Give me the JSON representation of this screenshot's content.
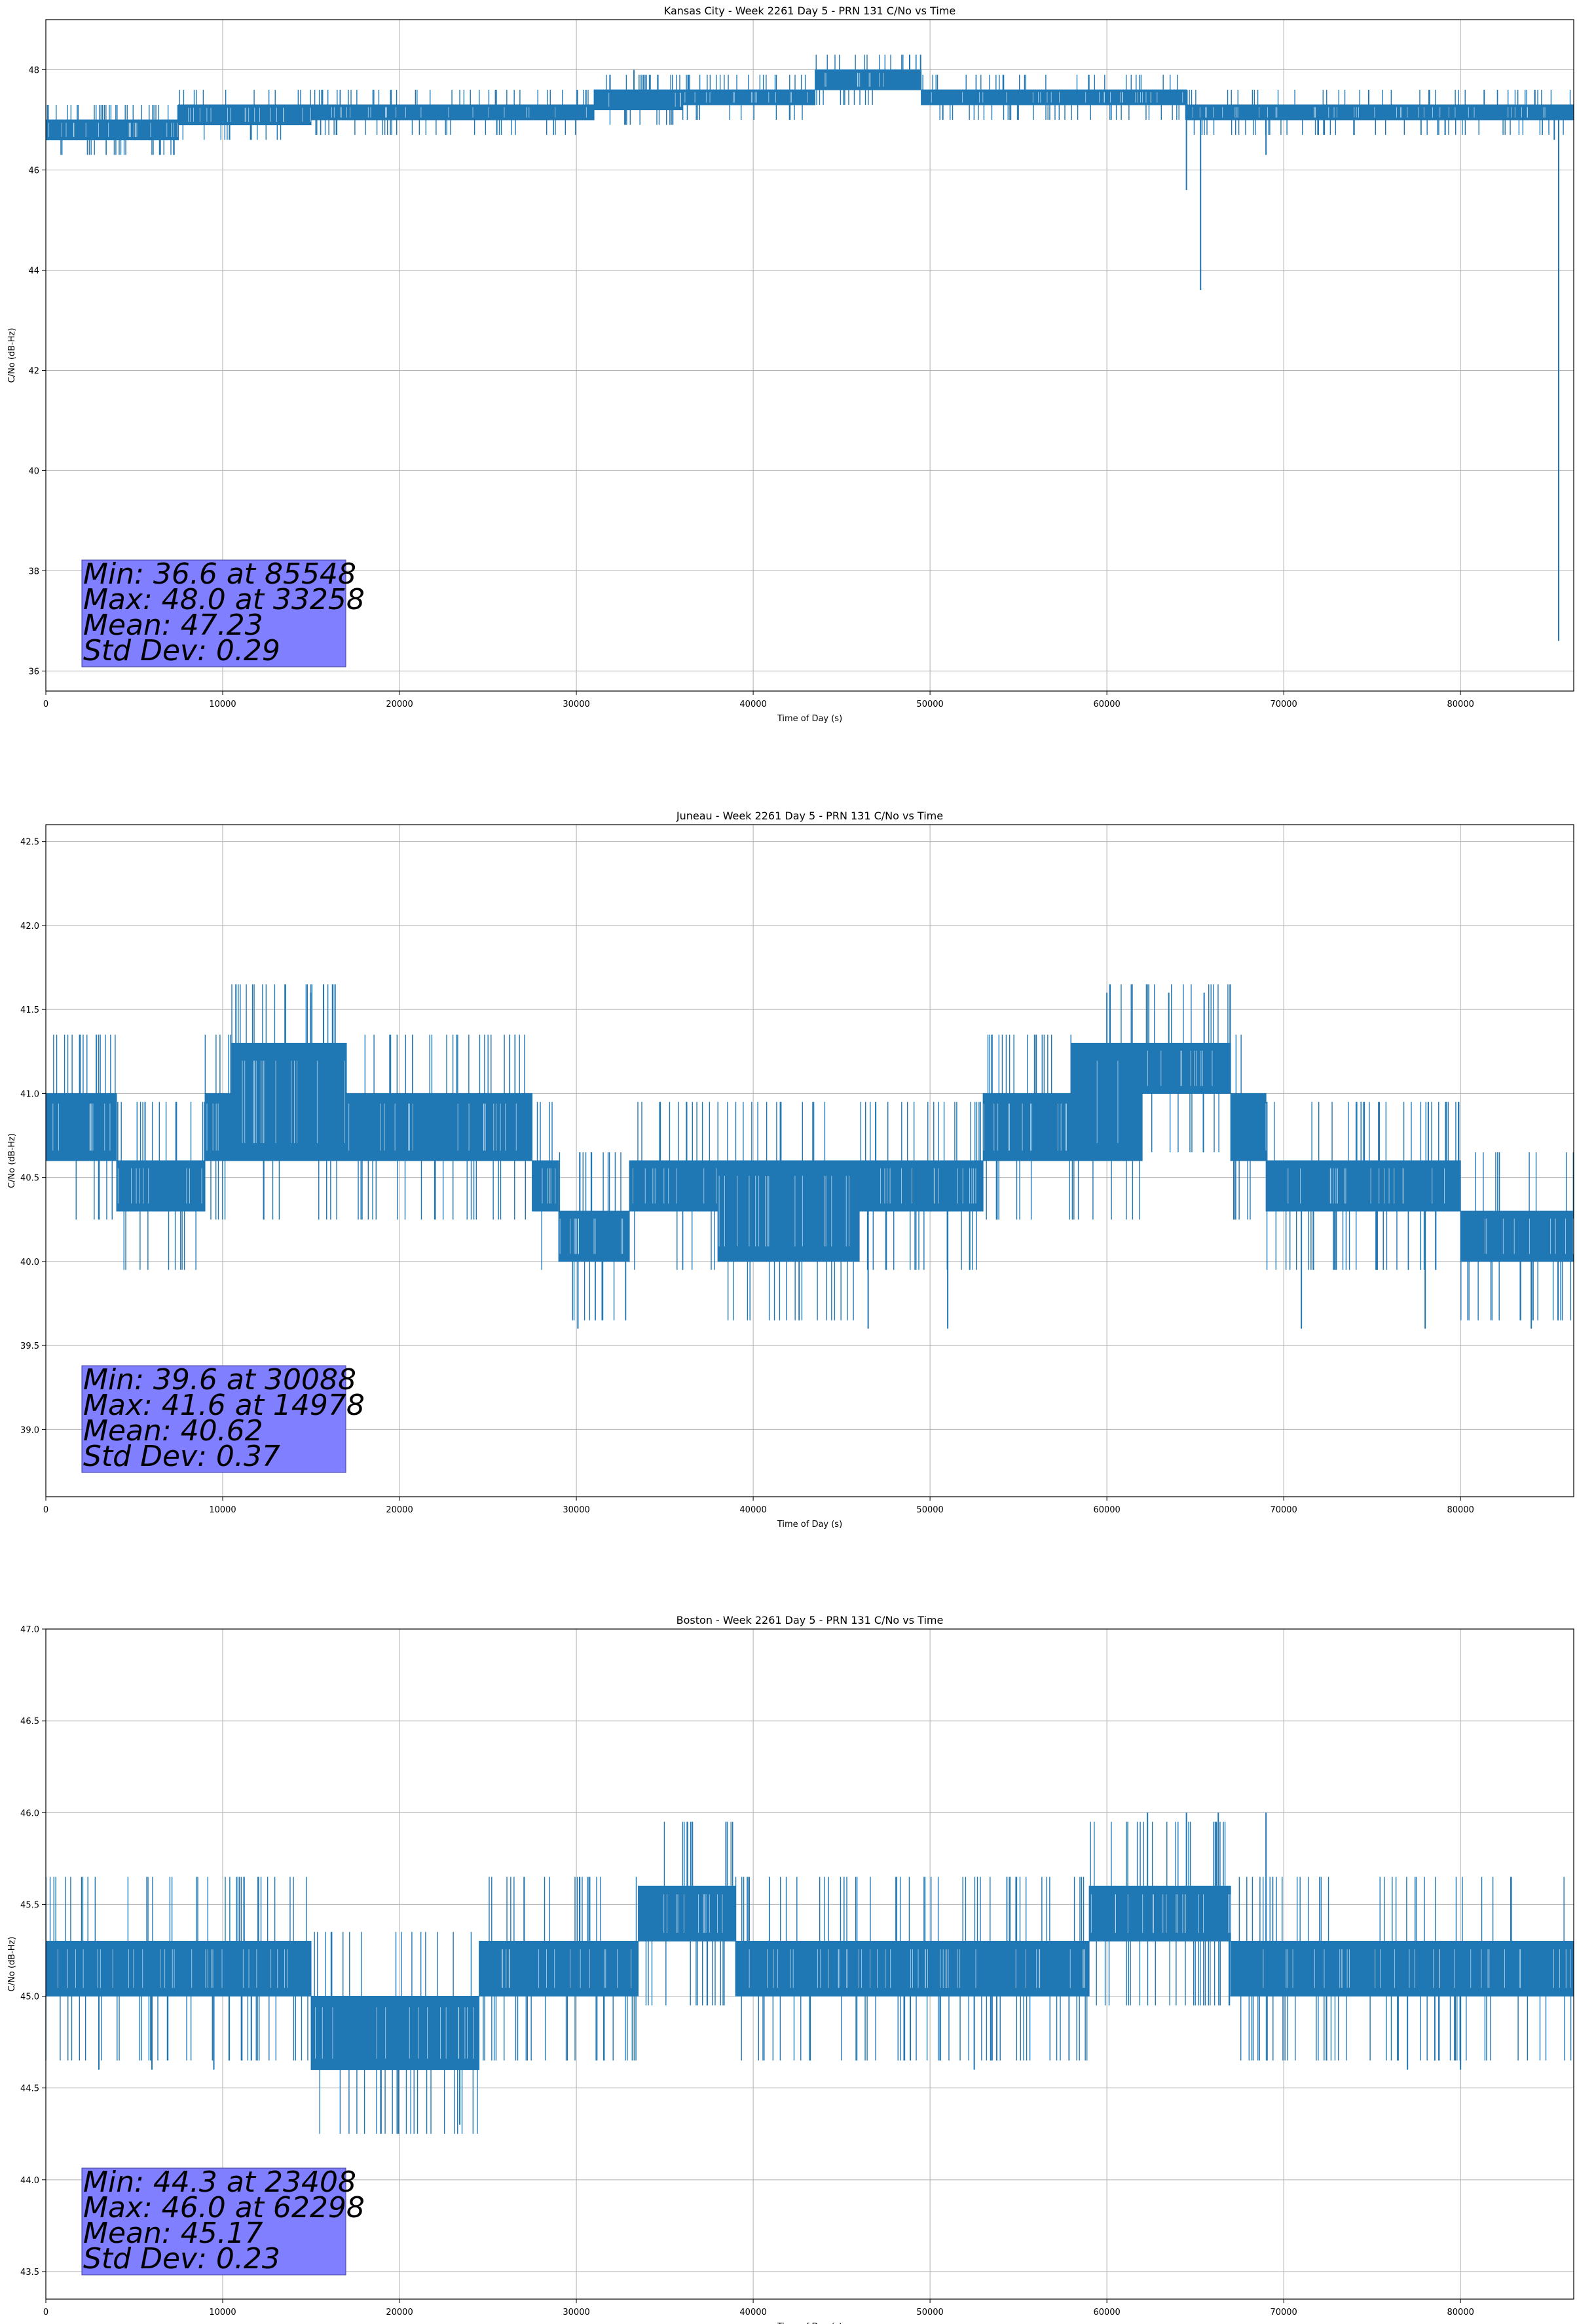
{
  "chart_data": [
    {
      "type": "line",
      "title": "Kansas City - Week 2261 Day 5 - PRN 131 C/No vs Time",
      "xlabel": "Time of Day (s)",
      "ylabel": "C/No (dB-Hz)",
      "xlim": [
        0,
        86400
      ],
      "ylim": [
        35.6,
        49.0
      ],
      "xticks": [
        0,
        10000,
        20000,
        30000,
        40000,
        50000,
        60000,
        70000,
        80000
      ],
      "yticks": [
        36,
        38,
        40,
        42,
        44,
        46,
        48
      ],
      "ytick_labels": [
        "36",
        "38",
        "40",
        "42",
        "44",
        "46",
        "48"
      ],
      "grid": true,
      "color": "#1f77b4",
      "stats": [
        "Min: 36.6 at 85548",
        "Max: 48.0 at 33258",
        "Mean: 47.23",
        "Std Dev: 0.29"
      ],
      "series": [
        {
          "x": [
            0,
            7500,
            7500,
            15000,
            15000,
            23000,
            23000,
            28000,
            28000,
            31000,
            31000,
            36000,
            36000,
            40000,
            40000,
            43500,
            43500,
            49500,
            49500,
            52000,
            52000,
            55000,
            55000,
            58000,
            58000,
            64500,
            64500,
            67000,
            67000,
            70000,
            70000,
            86400
          ],
          "ylow": [
            46.6,
            46.6,
            46.9,
            46.9,
            47.0,
            47.0,
            47.0,
            47.0,
            47.0,
            47.0,
            47.2,
            47.2,
            47.3,
            47.3,
            47.3,
            47.3,
            47.6,
            47.6,
            47.3,
            47.3,
            47.3,
            47.3,
            47.3,
            47.3,
            47.3,
            47.3,
            47.0,
            47.0,
            47.0,
            47.0,
            47.0,
            47.0
          ],
          "yhigh": [
            47.0,
            47.0,
            47.3,
            47.3,
            47.3,
            47.3,
            47.3,
            47.3,
            47.3,
            47.3,
            47.6,
            47.6,
            47.6,
            47.6,
            47.6,
            47.6,
            48.0,
            48.0,
            47.6,
            47.6,
            47.6,
            47.6,
            47.6,
            47.6,
            47.6,
            47.6,
            47.3,
            47.3,
            47.3,
            47.3,
            47.3,
            47.3
          ]
        }
      ],
      "spikes": [
        [
          64500,
          45.6
        ],
        [
          65300,
          43.6
        ],
        [
          69000,
          46.3
        ],
        [
          85548,
          36.6
        ],
        [
          33258,
          48.0
        ],
        [
          85300,
          46.6
        ]
      ]
    },
    {
      "type": "line",
      "title": "Juneau - Week 2261 Day 5 - PRN 131 C/No vs Time",
      "xlabel": "Time of Day (s)",
      "ylabel": "C/No (dB-Hz)",
      "xlim": [
        0,
        86400
      ],
      "ylim": [
        38.6,
        42.6
      ],
      "xticks": [
        0,
        10000,
        20000,
        30000,
        40000,
        50000,
        60000,
        70000,
        80000
      ],
      "yticks": [
        39.0,
        39.5,
        40.0,
        40.5,
        41.0,
        41.5,
        42.0,
        42.5
      ],
      "ytick_labels": [
        "39.0",
        "39.5",
        "40.0",
        "40.5",
        "41.0",
        "41.5",
        "42.0",
        "42.5"
      ],
      "grid": true,
      "color": "#1f77b4",
      "stats": [
        "Min: 39.6 at 30088",
        "Max: 41.6 at 14978",
        "Mean: 40.62",
        "Std Dev: 0.37"
      ],
      "series": [
        {
          "x": [
            0,
            4000,
            4000,
            9000,
            9000,
            10500,
            10500,
            17000,
            17000,
            27500,
            27500,
            29000,
            29000,
            33000,
            33000,
            38000,
            38000,
            46000,
            46000,
            53000,
            53000,
            58000,
            58000,
            62000,
            62000,
            67000,
            67000,
            69000,
            69000,
            74000,
            74000,
            80000,
            80000,
            86400
          ],
          "ylow": [
            40.6,
            40.6,
            40.3,
            40.3,
            40.6,
            40.6,
            40.6,
            40.6,
            40.6,
            40.6,
            40.3,
            40.3,
            40.0,
            40.0,
            40.3,
            40.3,
            40.0,
            40.0,
            40.3,
            40.3,
            40.6,
            40.6,
            40.6,
            40.6,
            41.0,
            41.0,
            40.6,
            40.6,
            40.3,
            40.3,
            40.3,
            40.3,
            40.0,
            40.0
          ],
          "yhigh": [
            41.0,
            41.0,
            40.6,
            40.6,
            41.0,
            41.0,
            41.3,
            41.3,
            41.0,
            41.0,
            40.6,
            40.6,
            40.3,
            40.3,
            40.6,
            40.6,
            40.6,
            40.6,
            40.6,
            40.6,
            41.0,
            41.0,
            41.3,
            41.3,
            41.3,
            41.3,
            41.0,
            41.0,
            40.6,
            40.6,
            40.6,
            40.6,
            40.3,
            40.3
          ]
        }
      ],
      "spikes": [
        [
          14978,
          41.6
        ],
        [
          30088,
          39.6
        ],
        [
          46500,
          39.6
        ],
        [
          51000,
          39.6
        ],
        [
          60000,
          41.6
        ],
        [
          63500,
          41.6
        ],
        [
          65500,
          41.6
        ],
        [
          71000,
          39.6
        ],
        [
          78000,
          39.6
        ],
        [
          84000,
          39.6
        ]
      ]
    },
    {
      "type": "line",
      "title": "Boston - Week 2261 Day 5 - PRN 131 C/No vs Time",
      "xlabel": "Time of Day (s)",
      "ylabel": "C/No (dB-Hz)",
      "xlim": [
        0,
        86400
      ],
      "ylim": [
        43.35,
        47.0
      ],
      "xticks": [
        0,
        10000,
        20000,
        30000,
        40000,
        50000,
        60000,
        70000,
        80000
      ],
      "yticks": [
        43.5,
        44.0,
        44.5,
        45.0,
        45.5,
        46.0,
        46.5,
        47.0
      ],
      "ytick_labels": [
        "43.5",
        "44.0",
        "44.5",
        "45.0",
        "45.5",
        "46.0",
        "46.5",
        "47.0"
      ],
      "grid": true,
      "color": "#1f77b4",
      "stats": [
        "Min: 44.3 at 23408",
        "Max: 46.0 at 62298",
        "Mean: 45.17",
        "Std Dev: 0.23"
      ],
      "series": [
        {
          "x": [
            0,
            2000,
            2000,
            8000,
            8000,
            15000,
            15000,
            24500,
            24500,
            30500,
            30500,
            33500,
            33500,
            39000,
            39000,
            52000,
            52000,
            59000,
            59000,
            67000,
            67000,
            73000,
            73000,
            86400
          ],
          "ylow": [
            45.0,
            45.0,
            45.0,
            45.0,
            45.0,
            45.0,
            44.6,
            44.6,
            45.0,
            45.0,
            45.0,
            45.0,
            45.3,
            45.3,
            45.0,
            45.0,
            45.0,
            45.0,
            45.3,
            45.3,
            45.0,
            45.0,
            45.0,
            45.0
          ],
          "yhigh": [
            45.3,
            45.3,
            45.3,
            45.3,
            45.3,
            45.3,
            45.0,
            45.0,
            45.3,
            45.3,
            45.3,
            45.3,
            45.6,
            45.6,
            45.3,
            45.3,
            45.3,
            45.3,
            45.6,
            45.6,
            45.3,
            45.3,
            45.3,
            45.3
          ]
        }
      ],
      "spikes": [
        [
          23408,
          44.3
        ],
        [
          52500,
          44.6
        ],
        [
          62298,
          46.0
        ],
        [
          64500,
          46.0
        ],
        [
          66300,
          46.0
        ],
        [
          69000,
          46.0
        ],
        [
          77000,
          44.6
        ],
        [
          80000,
          44.6
        ],
        [
          3000,
          44.6
        ],
        [
          6000,
          44.6
        ],
        [
          9500,
          44.6
        ]
      ]
    }
  ]
}
